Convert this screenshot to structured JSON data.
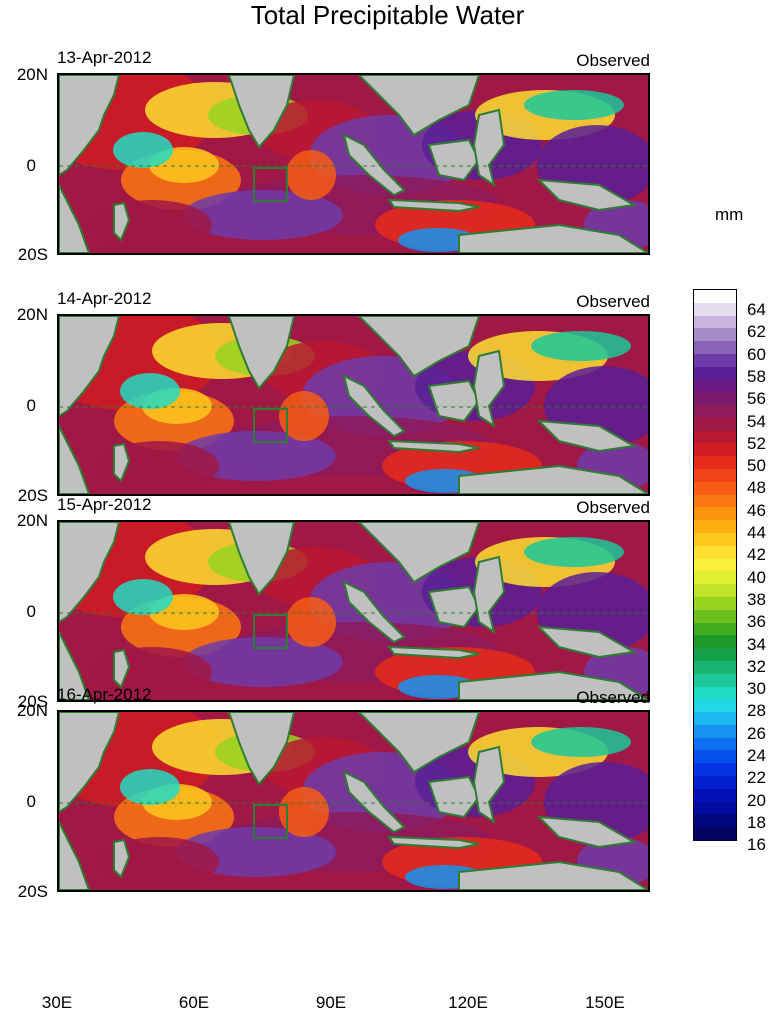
{
  "title": "Total Precipitable Water",
  "units": "mm",
  "panels": [
    {
      "date": "13-Apr-2012",
      "status": "Observed"
    },
    {
      "date": "14-Apr-2012",
      "status": "Observed"
    },
    {
      "date": "15-Apr-2012",
      "status": "Observed"
    },
    {
      "date": "16-Apr-2012",
      "status": "Observed"
    }
  ],
  "lat_labels": [
    "20N",
    "0",
    "20S"
  ],
  "lon_labels": [
    "30E",
    "60E",
    "90E",
    "120E",
    "150E"
  ],
  "colorbar_labels": [
    "64",
    "62",
    "60",
    "58",
    "56",
    "54",
    "52",
    "50",
    "48",
    "46",
    "44",
    "42",
    "40",
    "38",
    "36",
    "34",
    "32",
    "30",
    "28",
    "26",
    "24",
    "22",
    "20",
    "18",
    "16"
  ],
  "colorbar_colors": [
    "#ffffff",
    "#e6dcf0",
    "#c8b4dc",
    "#a68cc8",
    "#8a64b8",
    "#6e3ca8",
    "#5a1e96",
    "#6a1a82",
    "#7c1a6e",
    "#8e1a5a",
    "#a01846",
    "#b81832",
    "#d01c22",
    "#e62c1a",
    "#f04418",
    "#f65c14",
    "#fa7812",
    "#fc9410",
    "#feb010",
    "#fec81e",
    "#fee030",
    "#f8f03a",
    "#e0f030",
    "#c0e428",
    "#98d422",
    "#6cc01e",
    "#40ac1e",
    "#1e9a28",
    "#14a048",
    "#18b470",
    "#1cc89a",
    "#20dcc4",
    "#22d8e4",
    "#1cb8f0",
    "#1494f0",
    "#0c70f0",
    "#0850ec",
    "#0434e4",
    "#0220d0",
    "#0212b8",
    "#020ca0",
    "#020880",
    "#020460"
  ],
  "land_color": "#c0c0c0",
  "coast_color": "#2e7d32"
}
